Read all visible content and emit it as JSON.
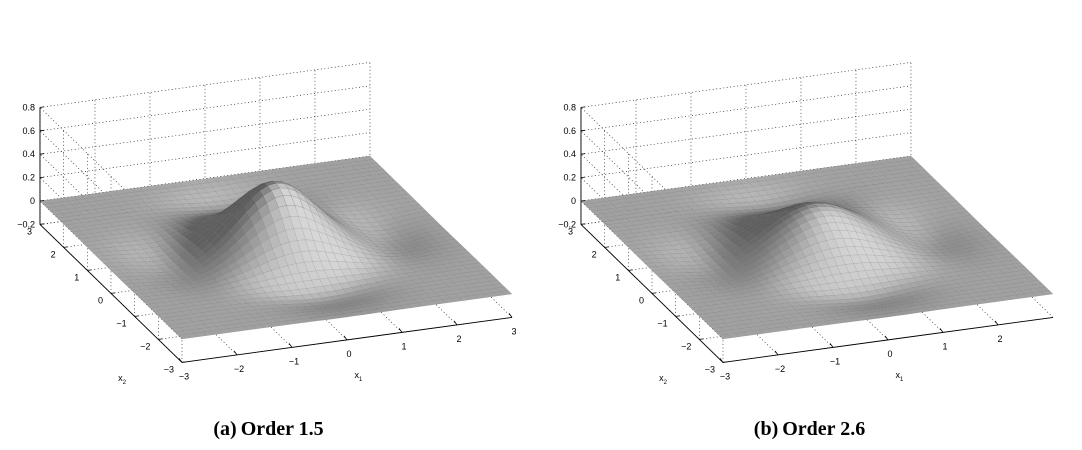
{
  "chart_data": [
    {
      "type": "surface",
      "caption_prefix": "(a)",
      "caption": "Order 1.5",
      "order": 1.5,
      "xlabel": "x",
      "xlabel_sub": "1",
      "ylabel": "x",
      "ylabel_sub": "2",
      "xlim": [
        -3,
        3
      ],
      "ylim": [
        -3,
        3
      ],
      "zlim": [
        -0.2,
        0.8
      ],
      "x_ticks": [
        "-3",
        "-2",
        "-1",
        "0",
        "1",
        "2",
        "3"
      ],
      "y_ticks": [
        "-3",
        "-2",
        "-1",
        "0",
        "1",
        "2",
        "3"
      ],
      "z_ticks": [
        "-0.2",
        "0",
        "0.2",
        "0.4",
        "0.6",
        "0.8"
      ],
      "peak_value": 0.55,
      "surface_color": "#8c8c8c",
      "grid": true
    },
    {
      "type": "surface",
      "caption_prefix": "(b)",
      "caption": "Order 2.6",
      "order": 2.6,
      "xlabel": "x",
      "xlabel_sub": "1",
      "ylabel": "x",
      "ylabel_sub": "2",
      "xlim": [
        -3,
        3
      ],
      "ylim": [
        -3,
        3
      ],
      "zlim": [
        -0.2,
        0.8
      ],
      "x_ticks": [
        "-3",
        "-2",
        "-1",
        "0",
        "1",
        "2"
      ],
      "y_ticks": [
        "-3",
        "-2",
        "-1",
        "0",
        "1",
        "2",
        "3"
      ],
      "z_ticks": [
        "-0.2",
        "0",
        "0.2",
        "0.4",
        "0.6",
        "0.8"
      ],
      "peak_value": 0.35,
      "surface_color": "#8c8c8c",
      "grid": true
    }
  ]
}
